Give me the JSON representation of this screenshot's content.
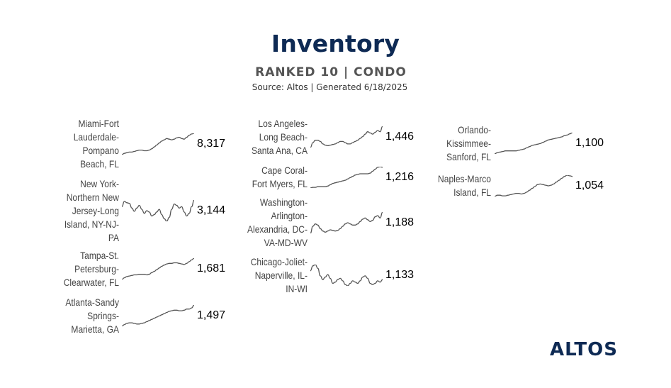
{
  "header": {
    "title": "Inventory",
    "subtitle": "RANKED 10 | CONDO",
    "source": "Source: Altos  | Generated 6/18/2025"
  },
  "brand": {
    "logo_text": "ALTOS",
    "title_color": "#0e2a54",
    "spark_color": "#555555"
  },
  "chart_data": {
    "type": "line",
    "title": "Inventory",
    "subtitle": "RANKED 10 | CONDO",
    "markets": [
      {
        "name": "Miami-Fort Lauderdale-Pompano Beach, FL",
        "value": "8,317",
        "values": [
          40,
          42,
          43,
          44,
          44,
          45,
          46,
          47,
          47,
          46,
          46,
          47,
          49,
          52,
          55,
          58,
          61,
          63,
          65,
          64,
          63,
          64,
          66,
          67,
          65,
          64,
          67,
          70,
          72,
          73
        ]
      },
      {
        "name": "New York-Northern New Jersey-Long Island, NY-NJ-PA",
        "value": "3,144",
        "values": [
          62,
          70,
          68,
          67,
          60,
          55,
          60,
          64,
          58,
          52,
          56,
          54,
          48,
          50,
          54,
          58,
          50,
          44,
          40,
          46,
          58,
          66,
          64,
          60,
          62,
          54,
          48,
          52,
          62,
          72
        ]
      },
      {
        "name": "Tampa-St. Petersburg-Clearwater, FL",
        "value": "1,681",
        "values": [
          40,
          43,
          45,
          46,
          47,
          48,
          48,
          49,
          49,
          49,
          48,
          49,
          52,
          54,
          57,
          60,
          63,
          65,
          67,
          68,
          68,
          69,
          69,
          68,
          67,
          66,
          68,
          71,
          74,
          77
        ]
      },
      {
        "name": "Atlanta-Sandy Springs-Marietta, GA",
        "value": "1,497",
        "values": [
          40,
          43,
          45,
          46,
          46,
          45,
          44,
          44,
          45,
          46,
          48,
          50,
          52,
          54,
          56,
          58,
          60,
          62,
          64,
          66,
          67,
          68,
          68,
          67,
          67,
          68,
          70,
          70,
          72,
          77
        ]
      },
      {
        "name": "Los Angeles-Long Beach-Santa Ana, CA",
        "value": "1,446",
        "values": [
          40,
          48,
          52,
          52,
          50,
          46,
          44,
          43,
          44,
          45,
          46,
          48,
          50,
          50,
          48,
          46,
          46,
          48,
          50,
          52,
          55,
          58,
          62,
          66,
          64,
          62,
          65,
          68,
          66,
          75
        ]
      },
      {
        "name": "Cape Coral-Fort Myers, FL",
        "value": "1,216",
        "values": [
          40,
          41,
          41,
          42,
          42,
          42,
          42,
          43,
          45,
          47,
          48,
          49,
          50,
          51,
          52,
          54,
          56,
          58,
          60,
          61,
          62,
          62,
          62,
          62,
          63,
          66,
          69,
          72,
          73,
          72
        ]
      },
      {
        "name": "Washington-Arlington-Alexandria, DC-VA-MD-WV",
        "value": "1,188",
        "values": [
          40,
          52,
          56,
          54,
          48,
          44,
          42,
          44,
          46,
          45,
          44,
          45,
          48,
          52,
          56,
          58,
          56,
          54,
          54,
          56,
          60,
          64,
          66,
          63,
          60,
          62,
          68,
          70,
          66,
          76
        ]
      },
      {
        "name": "Chicago-Joliet-Naperville, IL-IN-WI",
        "value": "1,133",
        "values": [
          66,
          74,
          76,
          70,
          58,
          52,
          56,
          60,
          54,
          46,
          48,
          52,
          54,
          50,
          44,
          42,
          46,
          50,
          48,
          46,
          50,
          56,
          58,
          54,
          46,
          44,
          46,
          50,
          48,
          52
        ]
      },
      {
        "name": "Orlando-Kissimmee-Sanford, FL",
        "value": "1,100",
        "values": [
          40,
          42,
          43,
          44,
          45,
          45,
          45,
          45,
          45,
          46,
          47,
          48,
          50,
          52,
          54,
          55,
          56,
          57,
          59,
          61,
          63,
          64,
          65,
          66,
          67,
          68,
          70,
          71,
          73,
          75
        ]
      },
      {
        "name": "Naples-Marco Island, FL",
        "value": "1,054",
        "values": [
          40,
          42,
          42,
          41,
          41,
          42,
          43,
          44,
          45,
          45,
          44,
          45,
          47,
          50,
          53,
          56,
          59,
          60,
          59,
          58,
          57,
          58,
          60,
          63,
          66,
          69,
          72,
          74,
          73,
          72
        ]
      }
    ]
  }
}
